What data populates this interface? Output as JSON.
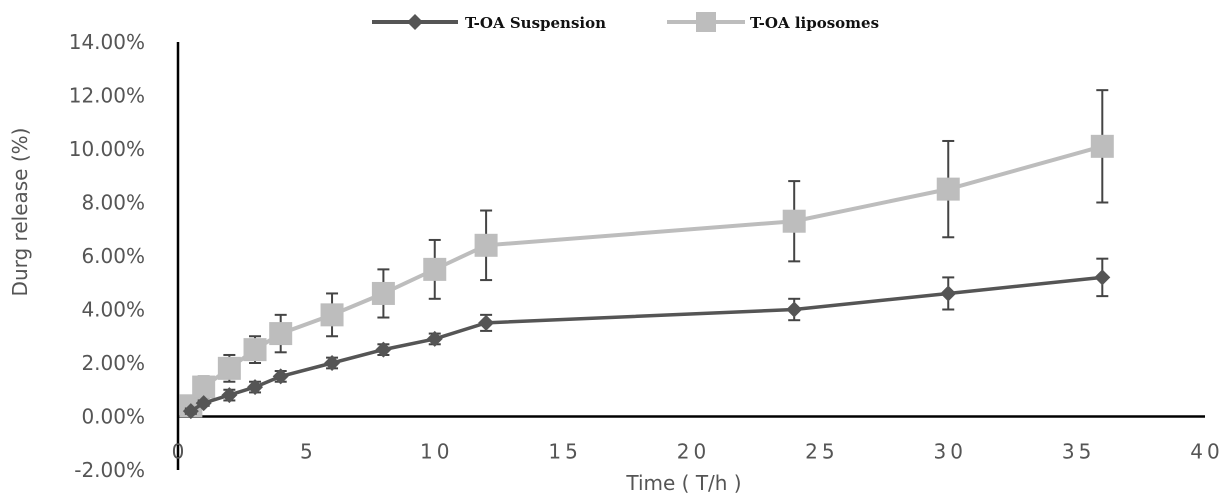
{
  "chart_data": {
    "type": "line",
    "title": "",
    "xlabel": "Time ( T/h )",
    "ylabel": "Durg release (%)",
    "xlim": [
      0,
      40
    ],
    "ylim": [
      -0.02,
      0.14
    ],
    "x_ticks": [
      0,
      5,
      10,
      15,
      20,
      25,
      30,
      35,
      40
    ],
    "y_ticks": [
      -0.02,
      0,
      0.02,
      0.04,
      0.06,
      0.08,
      0.1,
      0.12,
      0.14
    ],
    "x_tick_labels": [
      "0",
      "5",
      "10",
      "15",
      "20",
      "25",
      "30",
      "35",
      "40"
    ],
    "y_tick_labels": [
      "-2.00%",
      "0.00%",
      "2.00%",
      "4.00%",
      "6.00%",
      "8.00%",
      "10.00%",
      "12.00%",
      "14.00%"
    ],
    "grid": false,
    "legend_position": "top-center",
    "series": [
      {
        "name": "T-OA Suspension",
        "color": "#555555",
        "marker": "diamond",
        "x": [
          0.5,
          1,
          2,
          3,
          4,
          6,
          8,
          10,
          12,
          24,
          30,
          36
        ],
        "y": [
          0.002,
          0.005,
          0.008,
          0.011,
          0.015,
          0.02,
          0.025,
          0.029,
          0.035,
          0.04,
          0.046,
          0.052
        ],
        "err": [
          0.001,
          0.001,
          0.002,
          0.002,
          0.002,
          0.002,
          0.002,
          0.002,
          0.003,
          0.004,
          0.006,
          0.007
        ]
      },
      {
        "name": "T-OA liposomes",
        "color": "#bdbdbd",
        "marker": "square",
        "x": [
          0.5,
          1,
          2,
          3,
          4,
          6,
          8,
          10,
          12,
          24,
          30,
          36
        ],
        "y": [
          0.004,
          0.011,
          0.018,
          0.025,
          0.031,
          0.038,
          0.046,
          0.055,
          0.064,
          0.073,
          0.085,
          0.101
        ],
        "err": [
          0.002,
          0.004,
          0.005,
          0.005,
          0.007,
          0.008,
          0.009,
          0.011,
          0.013,
          0.015,
          0.018,
          0.021
        ]
      }
    ]
  }
}
